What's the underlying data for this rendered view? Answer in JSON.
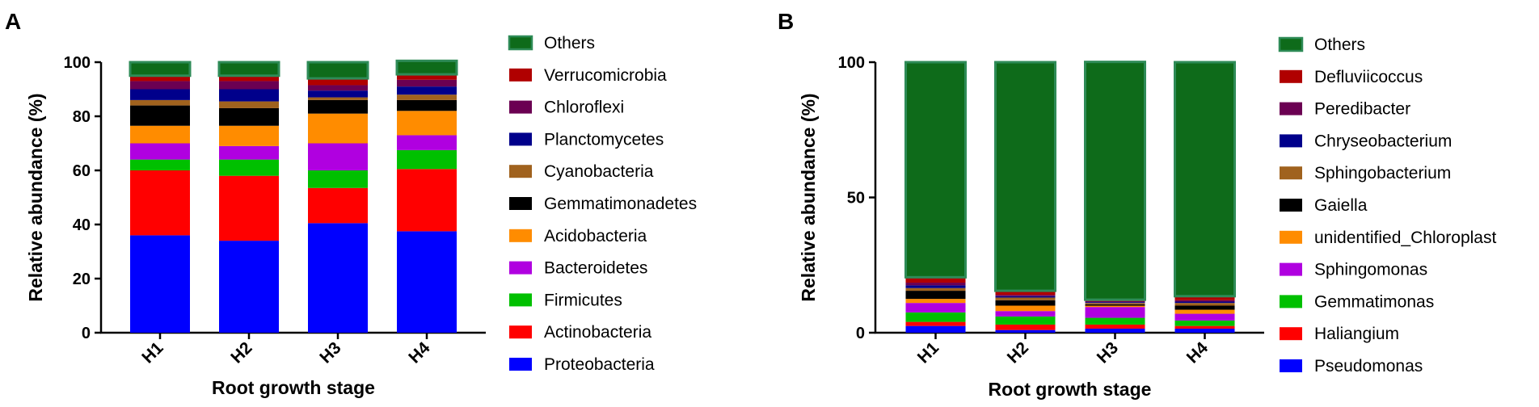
{
  "chart_data": [
    {
      "panel": "A",
      "type": "bar",
      "stacked": true,
      "xlabel": "Root growth stage",
      "ylabel": "Relative abundance (%)",
      "ylim": [
        0,
        100
      ],
      "yticks": [
        "0",
        "20",
        "40",
        "60",
        "80",
        "100"
      ],
      "categories": [
        "H1",
        "H2",
        "H3",
        "H4"
      ],
      "legend_position": "right",
      "series": [
        {
          "name": "Proteobacteria",
          "color": "#0000FF",
          "values": [
            36,
            34,
            40.5,
            37.5
          ]
        },
        {
          "name": "Actinobacteria",
          "color": "#FF0000",
          "values": [
            24,
            24,
            13,
            23
          ]
        },
        {
          "name": "Firmicutes",
          "color": "#00C000",
          "values": [
            4,
            6,
            6.5,
            7
          ]
        },
        {
          "name": "Bacteroidetes",
          "color": "#B000E0",
          "values": [
            6,
            5,
            10,
            5.5
          ]
        },
        {
          "name": "Acidobacteria",
          "color": "#FF8C00",
          "values": [
            6.5,
            7.5,
            11,
            9
          ]
        },
        {
          "name": "Gemmatimonadetes",
          "color": "#000000",
          "values": [
            7.5,
            6.5,
            5,
            4
          ]
        },
        {
          "name": "Cyanobacteria",
          "color": "#A0621E",
          "values": [
            2,
            2.5,
            1,
            2
          ]
        },
        {
          "name": "Planctomycetes",
          "color": "#00008B",
          "values": [
            4,
            4.5,
            2.5,
            3
          ]
        },
        {
          "name": "Chloroflexi",
          "color": "#6B0052",
          "values": [
            3,
            3,
            2,
            2.5
          ]
        },
        {
          "name": "Verrucomicrobia",
          "color": "#B00000",
          "values": [
            2,
            2,
            2.5,
            2
          ]
        },
        {
          "name": "Others",
          "color": "#0E6B1A",
          "values": [
            5,
            5,
            6,
            5
          ]
        }
      ]
    },
    {
      "panel": "B",
      "type": "bar",
      "stacked": true,
      "xlabel": "Root growth stage",
      "ylabel": "Relative abundance (%)",
      "ylim": [
        0,
        100
      ],
      "yticks": [
        "0",
        "50",
        "100"
      ],
      "categories": [
        "H1",
        "H2",
        "H3",
        "H4"
      ],
      "legend_position": "right",
      "series": [
        {
          "name": "Pseudomonas",
          "color": "#0000FF",
          "values": [
            2.5,
            1,
            1.5,
            1.5
          ]
        },
        {
          "name": "Haliangium",
          "color": "#FF0000",
          "values": [
            1.5,
            2,
            1.5,
            1
          ]
        },
        {
          "name": "Gemmatimonas",
          "color": "#00C000",
          "values": [
            3.5,
            3,
            2.5,
            2
          ]
        },
        {
          "name": "Sphingomonas",
          "color": "#B000E0",
          "values": [
            3.5,
            2,
            4,
            2.5
          ]
        },
        {
          "name": "unidentified_Chloroplast",
          "color": "#FF8C00",
          "values": [
            1.5,
            2,
            0.5,
            1.5
          ]
        },
        {
          "name": "Gaiella",
          "color": "#000000",
          "values": [
            3,
            2,
            0.5,
            1.5
          ]
        },
        {
          "name": "Sphingobacterium",
          "color": "#A0621E",
          "values": [
            1,
            1,
            0.5,
            1
          ]
        },
        {
          "name": "Chryseobacterium",
          "color": "#00008B",
          "values": [
            1,
            0.5,
            0.3,
            0.5
          ]
        },
        {
          "name": "Peredibacter",
          "color": "#6B0052",
          "values": [
            1,
            0.5,
            0.4,
            0.5
          ]
        },
        {
          "name": "Defluviicoccus",
          "color": "#B00000",
          "values": [
            2,
            1.5,
            0.5,
            1.5
          ]
        },
        {
          "name": "Others",
          "color": "#0E6B1A",
          "values": [
            79.5,
            84.5,
            87.9,
            86.5
          ]
        }
      ]
    }
  ]
}
